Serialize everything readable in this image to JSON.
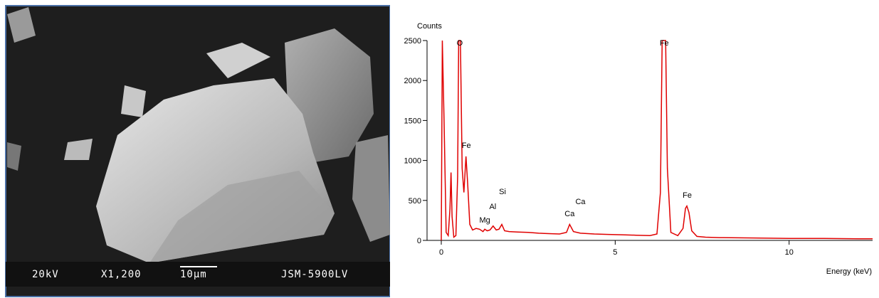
{
  "image": {
    "labels": [
      "20kV",
      "X1,200",
      "10µm",
      "JSM-5900LV"
    ]
  },
  "chart_data": {
    "type": "line",
    "y_label": "Counts",
    "x_label": "Energy (keV)",
    "x": [
      0,
      0.03,
      0.08,
      0.14,
      0.2,
      0.25,
      0.28,
      0.31,
      0.36,
      0.42,
      0.47,
      0.5,
      0.55,
      0.6,
      0.65,
      0.71,
      0.76,
      0.82,
      0.9,
      1.0,
      1.1,
      1.2,
      1.25,
      1.32,
      1.4,
      1.49,
      1.58,
      1.66,
      1.74,
      1.82,
      1.95,
      2.2,
      2.5,
      2.8,
      3.1,
      3.4,
      3.6,
      3.69,
      3.8,
      4.0,
      4.4,
      4.8,
      5.2,
      5.6,
      6.0,
      6.2,
      6.3,
      6.35,
      6.4,
      6.45,
      6.5,
      6.6,
      6.8,
      6.95,
      7.02,
      7.06,
      7.12,
      7.2,
      7.35,
      7.6,
      8.0,
      9.0,
      10.0,
      11.0,
      12.0,
      12.4
    ],
    "series": [
      {
        "color": "#e00000",
        "values": [
          0,
          2500,
          1500,
          100,
          60,
          400,
          850,
          300,
          40,
          60,
          800,
          2500,
          2500,
          900,
          600,
          1050,
          700,
          200,
          130,
          150,
          140,
          110,
          140,
          120,
          130,
          180,
          130,
          140,
          200,
          120,
          110,
          105,
          100,
          90,
          85,
          80,
          100,
          200,
          110,
          90,
          80,
          75,
          70,
          65,
          60,
          80,
          600,
          2500,
          2500,
          2500,
          900,
          100,
          60,
          150,
          400,
          430,
          350,
          120,
          50,
          40,
          35,
          30,
          25,
          25,
          20,
          20
        ]
      }
    ],
    "annotations": [
      {
        "text": "O",
        "x": 0.53,
        "y": 2438
      },
      {
        "text": "Fe",
        "x": 0.72,
        "y": 1157
      },
      {
        "text": "Mg",
        "x": 1.25,
        "y": 222
      },
      {
        "text": "Al",
        "x": 1.48,
        "y": 391
      },
      {
        "text": "Si",
        "x": 1.76,
        "y": 578
      },
      {
        "text": "Ca",
        "x": 3.69,
        "y": 302
      },
      {
        "text": "Ca",
        "x": 4.0,
        "y": 454
      },
      {
        "text": "Fe",
        "x": 6.41,
        "y": 2438
      },
      {
        "text": "Fe",
        "x": 7.07,
        "y": 534
      }
    ],
    "xlim": [
      0,
      12.4
    ],
    "xticks": [
      0,
      5,
      10
    ],
    "ylim": [
      0,
      2500
    ],
    "yticks": [
      0,
      500,
      1000,
      1500,
      2000,
      2500
    ]
  }
}
